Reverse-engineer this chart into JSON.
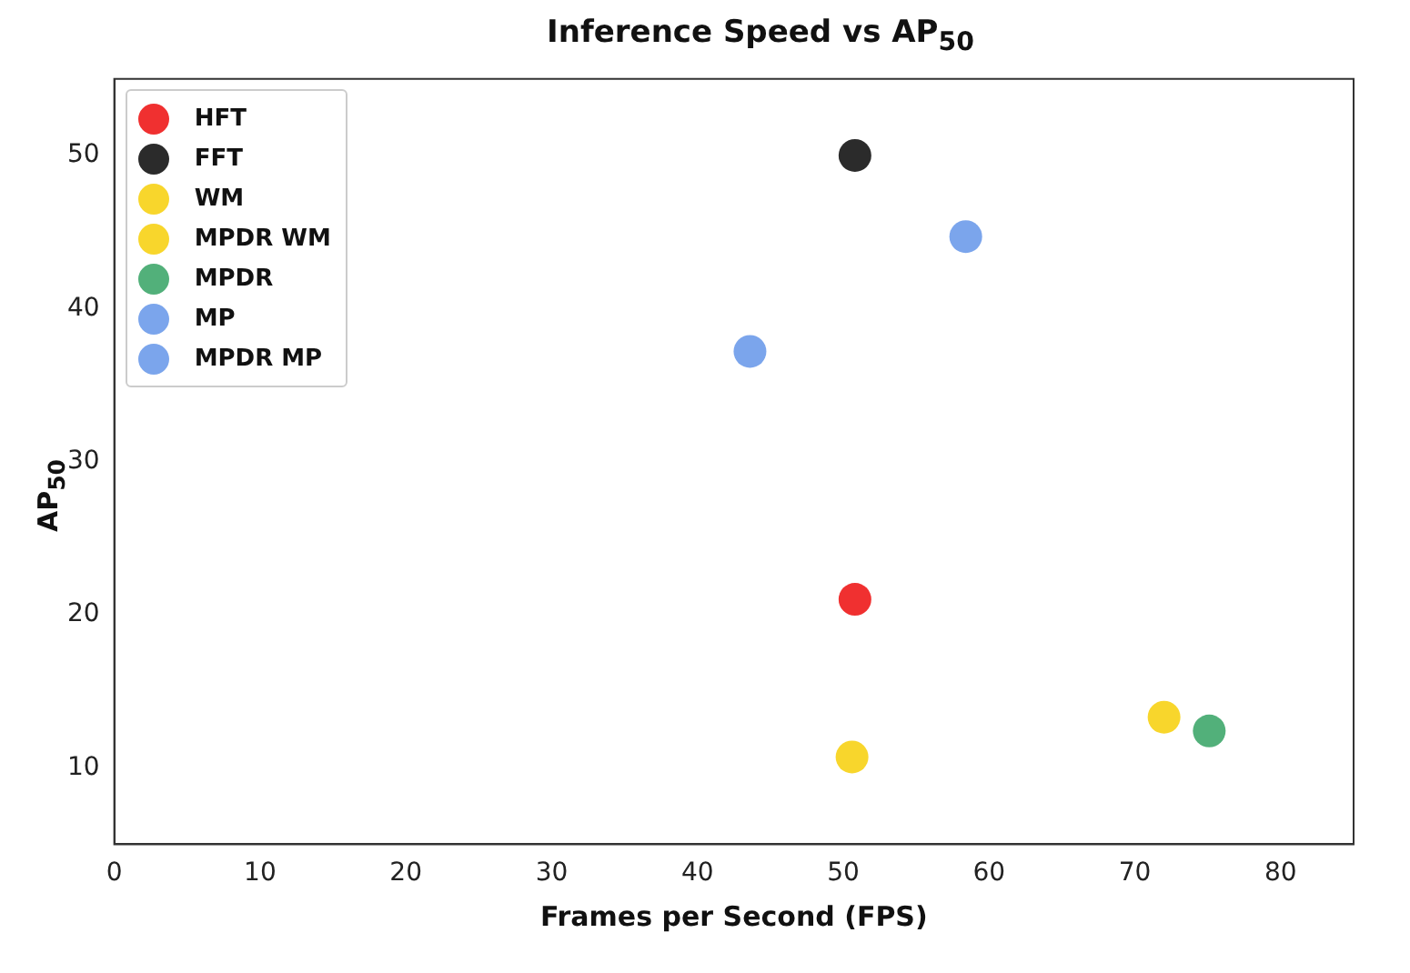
{
  "chart_data": {
    "type": "scatter",
    "title": "Inference Speed vs AP$_{50}$",
    "xlabel": "Frames per Second (FPS)",
    "ylabel": "AP$_{50}$",
    "xlim": [
      0,
      85
    ],
    "xticks": [
      0,
      10,
      20,
      30,
      40,
      50,
      60,
      70,
      80
    ],
    "ylim": [
      5,
      55
    ],
    "yticks": [
      10,
      20,
      30,
      40,
      50
    ],
    "grid": false,
    "legend": "top left",
    "marker": "circle",
    "series": [
      {
        "name": "HFT",
        "color": "#f03030",
        "x": [
          50.8
        ],
        "values": [
          21.0
        ]
      },
      {
        "name": "FFT",
        "color": "#2b2b2b",
        "x": [
          50.8
        ],
        "values": [
          50.0
        ]
      },
      {
        "name": "WM",
        "color": "#f8d62c",
        "x": [
          50.6
        ],
        "values": [
          10.7
        ]
      },
      {
        "name": "MPDR WM",
        "color": "#f8d62c",
        "x": [
          72.0
        ],
        "values": [
          13.3
        ]
      },
      {
        "name": "MPDR",
        "color": "#52b07a",
        "x": [
          75.1
        ],
        "values": [
          12.4
        ]
      },
      {
        "name": "MP",
        "color": "#7ba5ec",
        "x": [
          43.6
        ],
        "values": [
          37.2
        ]
      },
      {
        "name": "MPDR MP",
        "color": "#7ba5ec",
        "x": [
          58.4
        ],
        "values": [
          44.7
        ]
      }
    ]
  }
}
